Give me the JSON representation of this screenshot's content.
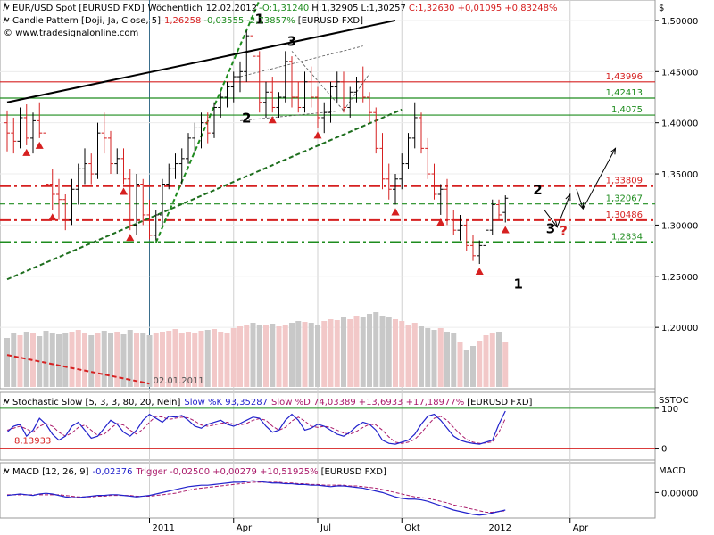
{
  "chart_data": {
    "type": "candlestick",
    "title": "EUR/USD Spot [EURUSD FXD]",
    "timeframe": "Wöchentlich",
    "date": "12.02.2012",
    "quote": {
      "open": "O:1,31240",
      "high": "H:1,32905",
      "low": "L:1,30257",
      "close": "C:1,32630",
      "change": "+0,01095",
      "change_pct": "+0,83248%"
    },
    "indicator_line": {
      "label": "Candle Pattern [Doji, Ja, Close, 5]",
      "value": "1,26258",
      "change": "-0,03555",
      "change_pct": "-2,73857%",
      "instrument": "[EURUSD FXD]"
    },
    "source": "www.tradesignalonline.com",
    "currency_label": "$",
    "y_range": [
      1.14,
      1.52
    ],
    "y_ticks": [
      {
        "v": 1.5,
        "label": "1,50000"
      },
      {
        "v": 1.45,
        "label": "1,45000"
      },
      {
        "v": 1.4,
        "label": "1,40000"
      },
      {
        "v": 1.35,
        "label": "1,35000"
      },
      {
        "v": 1.3,
        "label": "1,30000"
      },
      {
        "v": 1.25,
        "label": "1,25000"
      },
      {
        "v": 1.2,
        "label": "1,20000"
      }
    ],
    "x_labels": [
      {
        "label": "2011",
        "week": 22
      },
      {
        "label": "Apr",
        "week": 35
      },
      {
        "label": "Jul",
        "week": 48
      },
      {
        "label": "Okt",
        "week": 61
      },
      {
        "label": "2012",
        "week": 74
      },
      {
        "label": "Apr",
        "week": 87
      }
    ],
    "vertical_marker": {
      "label": "02.01.2011",
      "week": 22
    },
    "levels": [
      {
        "label": "1,43996",
        "value": 1.43996,
        "color": "#d62020",
        "style": "solid"
      },
      {
        "label": "1,42413",
        "value": 1.42413,
        "color": "#1e8c1e",
        "style": "solid"
      },
      {
        "label": "1,4075",
        "value": 1.4075,
        "color": "#1e8c1e",
        "style": "solid"
      },
      {
        "label": "1,33809",
        "value": 1.33809,
        "color": "#d62020",
        "style": "dashdot"
      },
      {
        "label": "1,32067",
        "value": 1.32067,
        "color": "#1e8c1e",
        "style": "dashed"
      },
      {
        "label": "1,30486",
        "value": 1.30486,
        "color": "#d62020",
        "style": "dashdot"
      },
      {
        "label": "1,2834",
        "value": 1.2834,
        "color": "#1e8c1e",
        "style": "dashdot"
      }
    ],
    "candles": [
      [
        1.4,
        1.412,
        1.372,
        1.39
      ],
      [
        1.39,
        1.405,
        1.37,
        1.382
      ],
      [
        1.382,
        1.415,
        1.375,
        1.405
      ],
      [
        1.405,
        1.418,
        1.378,
        1.385
      ],
      [
        1.385,
        1.41,
        1.37,
        1.402
      ],
      [
        1.402,
        1.42,
        1.385,
        1.39
      ],
      [
        1.39,
        1.395,
        1.335,
        1.34
      ],
      [
        1.34,
        1.355,
        1.315,
        1.33
      ],
      [
        1.33,
        1.345,
        1.305,
        1.325
      ],
      [
        1.325,
        1.33,
        1.295,
        1.305
      ],
      [
        1.305,
        1.345,
        1.3,
        1.335
      ],
      [
        1.335,
        1.36,
        1.32,
        1.355
      ],
      [
        1.355,
        1.375,
        1.34,
        1.36
      ],
      [
        1.36,
        1.37,
        1.34,
        1.35
      ],
      [
        1.35,
        1.4,
        1.345,
        1.39
      ],
      [
        1.39,
        1.41,
        1.37,
        1.385
      ],
      [
        1.385,
        1.392,
        1.35,
        1.36
      ],
      [
        1.36,
        1.375,
        1.35,
        1.365
      ],
      [
        1.365,
        1.375,
        1.34,
        1.345
      ],
      [
        1.345,
        1.355,
        1.295,
        1.3
      ],
      [
        1.3,
        1.35,
        1.29,
        1.34
      ],
      [
        1.34,
        1.345,
        1.3,
        1.31
      ],
      [
        1.31,
        1.325,
        1.286,
        1.29
      ],
      [
        1.29,
        1.315,
        1.285,
        1.31
      ],
      [
        1.31,
        1.345,
        1.3,
        1.34
      ],
      [
        1.34,
        1.36,
        1.335,
        1.355
      ],
      [
        1.355,
        1.37,
        1.345,
        1.36
      ],
      [
        1.36,
        1.375,
        1.34,
        1.365
      ],
      [
        1.365,
        1.39,
        1.36,
        1.385
      ],
      [
        1.385,
        1.4,
        1.37,
        1.395
      ],
      [
        1.395,
        1.41,
        1.375,
        1.4
      ],
      [
        1.4,
        1.41,
        1.38,
        1.39
      ],
      [
        1.39,
        1.42,
        1.385,
        1.415
      ],
      [
        1.415,
        1.43,
        1.405,
        1.425
      ],
      [
        1.425,
        1.44,
        1.415,
        1.435
      ],
      [
        1.435,
        1.45,
        1.42,
        1.445
      ],
      [
        1.445,
        1.46,
        1.43,
        1.45
      ],
      [
        1.45,
        1.49,
        1.44,
        1.485
      ],
      [
        1.485,
        1.495,
        1.455,
        1.465
      ],
      [
        1.465,
        1.47,
        1.41,
        1.42
      ],
      [
        1.42,
        1.44,
        1.405,
        1.43
      ],
      [
        1.43,
        1.445,
        1.41,
        1.415
      ],
      [
        1.415,
        1.43,
        1.405,
        1.425
      ],
      [
        1.425,
        1.47,
        1.42,
        1.46
      ],
      [
        1.46,
        1.465,
        1.415,
        1.425
      ],
      [
        1.425,
        1.44,
        1.41,
        1.415
      ],
      [
        1.415,
        1.45,
        1.41,
        1.44
      ],
      [
        1.44,
        1.455,
        1.415,
        1.425
      ],
      [
        1.425,
        1.435,
        1.395,
        1.405
      ],
      [
        1.405,
        1.42,
        1.39,
        1.41
      ],
      [
        1.41,
        1.44,
        1.4,
        1.435
      ],
      [
        1.435,
        1.45,
        1.42,
        1.44
      ],
      [
        1.44,
        1.45,
        1.41,
        1.415
      ],
      [
        1.415,
        1.435,
        1.405,
        1.43
      ],
      [
        1.43,
        1.445,
        1.42,
        1.44
      ],
      [
        1.44,
        1.455,
        1.42,
        1.425
      ],
      [
        1.425,
        1.43,
        1.4,
        1.41
      ],
      [
        1.41,
        1.415,
        1.37,
        1.375
      ],
      [
        1.375,
        1.39,
        1.335,
        1.345
      ],
      [
        1.345,
        1.36,
        1.325,
        1.335
      ],
      [
        1.335,
        1.35,
        1.32,
        1.345
      ],
      [
        1.345,
        1.37,
        1.335,
        1.36
      ],
      [
        1.36,
        1.39,
        1.355,
        1.385
      ],
      [
        1.385,
        1.42,
        1.375,
        1.405
      ],
      [
        1.405,
        1.41,
        1.37,
        1.375
      ],
      [
        1.375,
        1.385,
        1.345,
        1.35
      ],
      [
        1.35,
        1.36,
        1.325,
        1.33
      ],
      [
        1.33,
        1.34,
        1.31,
        1.335
      ],
      [
        1.335,
        1.345,
        1.3,
        1.305
      ],
      [
        1.305,
        1.315,
        1.29,
        1.295
      ],
      [
        1.295,
        1.31,
        1.285,
        1.3
      ],
      [
        1.3,
        1.305,
        1.275,
        1.28
      ],
      [
        1.28,
        1.29,
        1.265,
        1.27
      ],
      [
        1.27,
        1.285,
        1.262,
        1.28
      ],
      [
        1.28,
        1.3,
        1.275,
        1.295
      ],
      [
        1.295,
        1.325,
        1.29,
        1.32
      ],
      [
        1.32,
        1.325,
        1.305,
        1.31
      ],
      [
        1.3124,
        1.32905,
        1.30257,
        1.3263
      ]
    ],
    "volume": [
      0.55,
      0.6,
      0.58,
      0.62,
      0.6,
      0.57,
      0.63,
      0.61,
      0.59,
      0.6,
      0.62,
      0.64,
      0.6,
      0.58,
      0.61,
      0.63,
      0.6,
      0.62,
      0.59,
      0.64,
      0.6,
      0.61,
      0.58,
      0.6,
      0.62,
      0.63,
      0.65,
      0.6,
      0.62,
      0.61,
      0.63,
      0.64,
      0.65,
      0.62,
      0.6,
      0.66,
      0.68,
      0.7,
      0.72,
      0.7,
      0.69,
      0.71,
      0.68,
      0.7,
      0.72,
      0.74,
      0.73,
      0.72,
      0.7,
      0.74,
      0.76,
      0.75,
      0.78,
      0.76,
      0.8,
      0.78,
      0.82,
      0.84,
      0.8,
      0.78,
      0.76,
      0.74,
      0.7,
      0.72,
      0.68,
      0.66,
      0.64,
      0.66,
      0.62,
      0.6,
      0.5,
      0.42,
      0.46,
      0.52,
      0.58,
      0.6,
      0.62,
      0.5
    ],
    "volume_colors": "red-up gray-down alternating",
    "trendlines": [
      {
        "name": "upper-black-trendline",
        "from": [
          0,
          1.42
        ],
        "to": [
          60,
          1.5
        ],
        "color": "#000000",
        "style": "solid"
      },
      {
        "name": "lower-green-trendline",
        "from": [
          0,
          1.247
        ],
        "to": [
          61,
          1.413
        ],
        "color": "#1e6e1e",
        "style": "dashed"
      },
      {
        "name": "steep-green-trendline",
        "from": [
          23,
          1.283
        ],
        "to": [
          39,
          1.52
        ],
        "color": "#1e8c1e",
        "style": "dashed"
      },
      {
        "name": "bottom-red-trendline",
        "from": [
          0,
          1.173
        ],
        "to": [
          22,
          1.145
        ],
        "color": "#d62020",
        "style": "dashed"
      }
    ],
    "doji_markers": [
      3,
      5,
      7,
      18,
      19,
      41,
      48,
      60,
      60,
      67,
      73,
      77
    ],
    "wave_labels": [
      {
        "label": "1",
        "week": 39,
        "value": 1.497,
        "color": "#000000"
      },
      {
        "label": "2",
        "week": 37,
        "value": 1.4,
        "color": "#000000"
      },
      {
        "label": "3",
        "week": 44,
        "value": 1.475,
        "color": "#000000"
      },
      {
        "label": "1",
        "week": 79,
        "value": 1.238,
        "color": "#000000"
      },
      {
        "label": "2",
        "week": 82,
        "value": 1.33,
        "color": "#000000"
      },
      {
        "label": "3",
        "week": 84,
        "value": 1.292,
        "color": "#000000"
      },
      {
        "label": "?",
        "week": 86,
        "value": 1.29,
        "color": "#d62020"
      }
    ],
    "forecast_arrows": [
      [
        83,
        1.315,
        85,
        1.298
      ],
      [
        85,
        1.298,
        87,
        1.33
      ],
      [
        88,
        1.335,
        89,
        1.316
      ],
      [
        89,
        1.316,
        94,
        1.375
      ]
    ]
  },
  "stochastic": {
    "label": "Stochastic Slow [5, 3, 3, 80, 20, Nein]",
    "k_label": "Slow %K 93,35287",
    "d_label": "Slow %D 74,03389",
    "change": "+13,6933 +17,18977%",
    "instrument": "[EURUSD FXD]",
    "panel_label": "SSTOC",
    "marker_label": "8,13933",
    "y_range": [
      -30,
      140
    ],
    "y_ticks": [
      {
        "v": 100,
        "label": "100"
      },
      {
        "v": 0,
        "label": "0"
      }
    ],
    "k_values": [
      40,
      55,
      60,
      30,
      45,
      75,
      60,
      35,
      20,
      30,
      55,
      65,
      45,
      25,
      30,
      50,
      70,
      60,
      40,
      30,
      45,
      70,
      85,
      75,
      65,
      80,
      78,
      82,
      70,
      55,
      50,
      60,
      65,
      70,
      60,
      55,
      62,
      70,
      78,
      75,
      55,
      40,
      45,
      70,
      85,
      70,
      45,
      50,
      60,
      55,
      45,
      35,
      30,
      40,
      55,
      65,
      60,
      45,
      20,
      12,
      10,
      15,
      20,
      35,
      60,
      80,
      85,
      70,
      50,
      30,
      20,
      15,
      12,
      10,
      15,
      20,
      60,
      93
    ],
    "d_values": [
      45,
      50,
      55,
      48,
      40,
      55,
      62,
      55,
      40,
      30,
      38,
      52,
      58,
      45,
      32,
      35,
      50,
      62,
      58,
      45,
      35,
      48,
      65,
      80,
      78,
      72,
      75,
      78,
      76,
      68,
      58,
      55,
      58,
      62,
      65,
      60,
      58,
      62,
      70,
      74,
      70,
      55,
      45,
      52,
      68,
      78,
      68,
      55,
      52,
      55,
      52,
      45,
      38,
      35,
      42,
      52,
      60,
      58,
      45,
      28,
      15,
      12,
      15,
      22,
      38,
      58,
      75,
      80,
      70,
      52,
      35,
      22,
      15,
      12,
      13,
      16,
      40,
      74
    ]
  },
  "macd": {
    "label": "MACD [12, 26, 9]",
    "value": "-0,02376",
    "trigger_label": "Trigger -0,02500",
    "change": "+0,00279 +10,51925%",
    "instrument": "[EURUSD FXD]",
    "panel_label": "MACD",
    "zero_label": "0,00000",
    "y_range": [
      -0.035,
      0.02
    ],
    "macd_values": [
      -0.004,
      -0.003,
      -0.002,
      -0.003,
      -0.004,
      -0.002,
      -0.001,
      -0.002,
      -0.004,
      -0.006,
      -0.007,
      -0.007,
      -0.006,
      -0.005,
      -0.004,
      -0.004,
      -0.003,
      -0.003,
      -0.004,
      -0.005,
      -0.006,
      -0.005,
      -0.004,
      -0.002,
      0.0,
      0.002,
      0.004,
      0.006,
      0.008,
      0.009,
      0.01,
      0.01,
      0.011,
      0.012,
      0.013,
      0.014,
      0.014,
      0.015,
      0.016,
      0.015,
      0.014,
      0.013,
      0.013,
      0.012,
      0.012,
      0.011,
      0.011,
      0.01,
      0.01,
      0.009,
      0.008,
      0.009,
      0.009,
      0.008,
      0.007,
      0.006,
      0.004,
      0.002,
      0.0,
      -0.003,
      -0.006,
      -0.008,
      -0.009,
      -0.009,
      -0.01,
      -0.012,
      -0.015,
      -0.018,
      -0.021,
      -0.024,
      -0.026,
      -0.028,
      -0.03,
      -0.031,
      -0.03,
      -0.028,
      -0.026,
      -0.024
    ],
    "trigger_values": [
      -0.003,
      -0.003,
      -0.003,
      -0.003,
      -0.003,
      -0.003,
      -0.003,
      -0.003,
      -0.003,
      -0.004,
      -0.005,
      -0.006,
      -0.006,
      -0.006,
      -0.005,
      -0.005,
      -0.004,
      -0.004,
      -0.004,
      -0.004,
      -0.005,
      -0.005,
      -0.005,
      -0.004,
      -0.003,
      -0.002,
      -0.001,
      0.001,
      0.003,
      0.005,
      0.006,
      0.007,
      0.008,
      0.009,
      0.01,
      0.011,
      0.012,
      0.013,
      0.014,
      0.014,
      0.014,
      0.014,
      0.014,
      0.013,
      0.013,
      0.012,
      0.012,
      0.011,
      0.011,
      0.01,
      0.01,
      0.01,
      0.01,
      0.009,
      0.009,
      0.008,
      0.007,
      0.006,
      0.004,
      0.002,
      0.0,
      -0.002,
      -0.004,
      -0.006,
      -0.007,
      -0.008,
      -0.01,
      -0.012,
      -0.014,
      -0.017,
      -0.019,
      -0.021,
      -0.023,
      -0.025,
      -0.027,
      -0.027,
      -0.026,
      -0.025
    ]
  }
}
